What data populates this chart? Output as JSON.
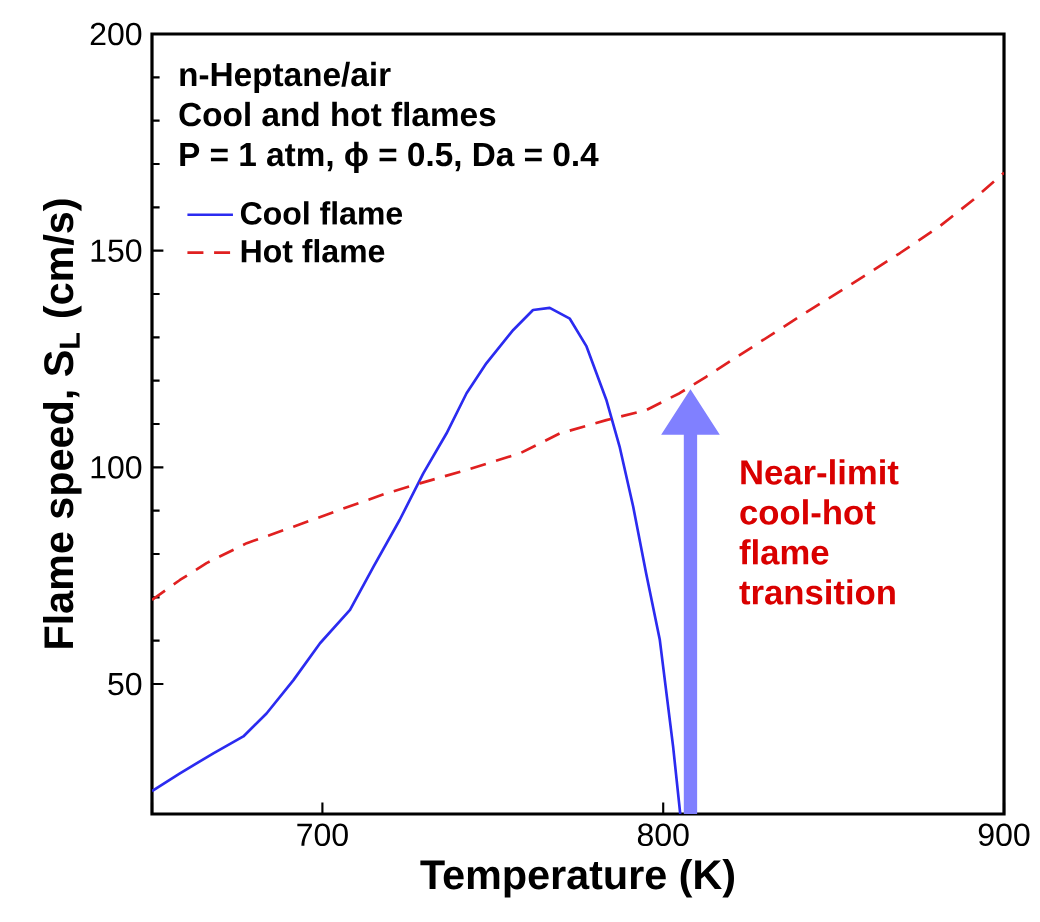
{
  "chart_data": {
    "type": "line",
    "title": "n-Heptane/air",
    "subtitle": "Cool and hot flames",
    "xlabel": "Temperature (K)",
    "ylabel": "Flame speed, S$_{L}$ (cm/s)",
    "xlim": [
      650,
      900
    ],
    "xticks": [
      {
        "value": 650,
        "label": null
      },
      700,
      800,
      900
    ],
    "ylim": [
      20,
      200
    ],
    "yticks": [
      50,
      100,
      150,
      200
    ],
    "legend": "top left",
    "grid": false,
    "marker": "none",
    "annotations": [
      "P = 1 atm, ϕ = 0.5, Da = 0.4",
      {
        "text": "Near-limit cool-hot flame transition",
        "x": 808,
        "y": 118
      }
    ],
    "series": [
      {
        "name": "Cool flame",
        "color": "#2b2bf0",
        "line_style": "solid",
        "x": [
          650,
          658.2,
          668,
          676.8,
          683.6,
          691.5,
          699.3,
          708.1,
          715,
          722.7,
          729.6,
          736.4,
          742.3,
          748.1,
          756,
          761.8,
          766.7,
          772.6,
          777.5,
          783.3,
          787.2,
          791.2,
          795,
          799,
          802.9,
          805
        ],
        "values": [
          25.3,
          29.4,
          34,
          37.9,
          43.2,
          50.9,
          59.4,
          67.1,
          77.1,
          87.9,
          98.6,
          107.8,
          117.1,
          124,
          131.7,
          136.3,
          136.8,
          134.3,
          127.9,
          115.6,
          104.8,
          90.9,
          75.5,
          60.2,
          35.6,
          20
        ]
      },
      {
        "name": "Hot flame",
        "color": "#e02020",
        "line_style": "dashed",
        "x": [
          650,
          658.2,
          666,
          677.8,
          691.5,
          705.1,
          718.8,
          728.6,
          742.3,
          757.9,
          769.6,
          783.3,
          795,
          804.8,
          812.6,
          826.4,
          840,
          855.7,
          869.4,
          881.1,
          890.9,
          900
        ],
        "values": [
          69.4,
          74,
          77.9,
          82.5,
          86.3,
          90.2,
          94,
          96.3,
          99.4,
          103.2,
          107.8,
          110.9,
          113.2,
          117.1,
          120.9,
          127.9,
          134.8,
          142.5,
          149.4,
          155.6,
          161.7,
          168
        ]
      }
    ]
  }
}
